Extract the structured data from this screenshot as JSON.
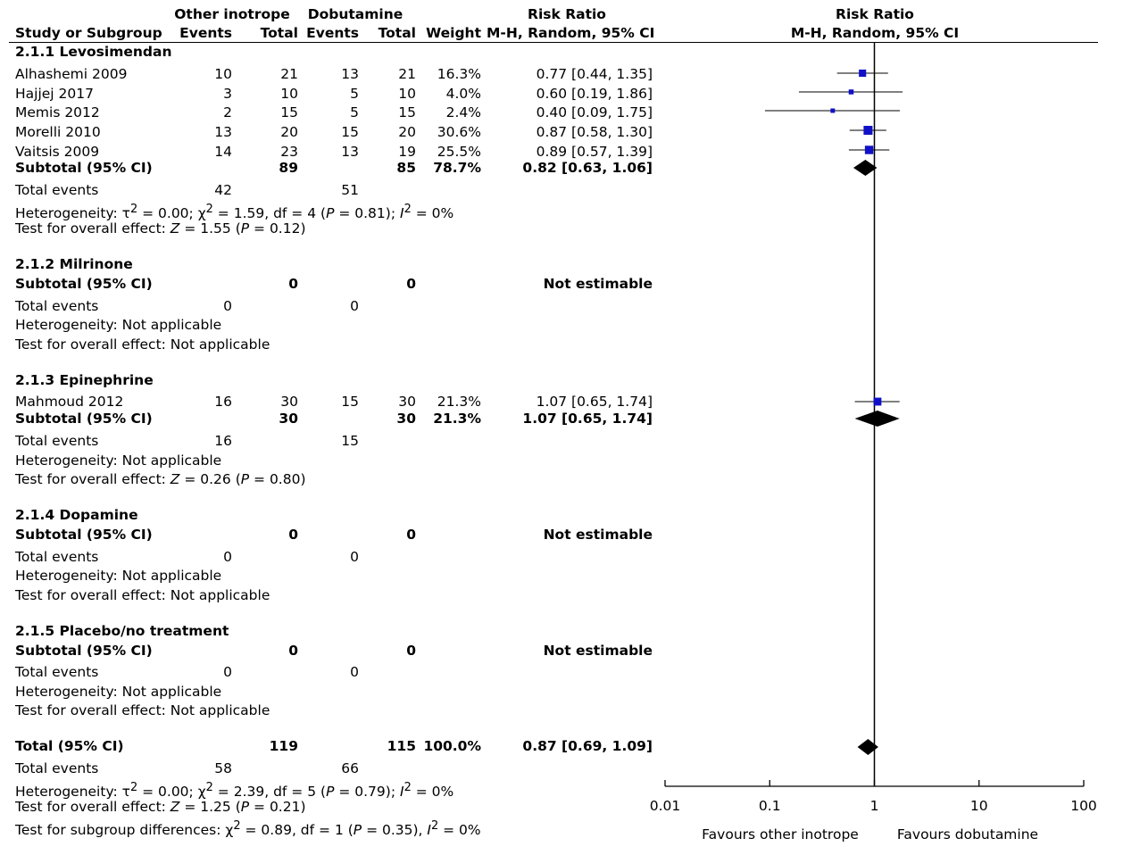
{
  "header": {
    "group1": "Other inotrope",
    "group2": "Dobutamine",
    "rr_col": "Risk Ratio",
    "rr_sub": "M-H, Random, 95% CI",
    "plot_title": "Risk Ratio",
    "plot_sub": "M-H, Random, 95% CI",
    "study": "Study or Subgroup",
    "events": "Events",
    "total": "Total",
    "weight": "Weight"
  },
  "rows": {
    "g1": {
      "title": "2.1.1 Levosimendan"
    },
    "s1": {
      "name": "Alhashemi 2009",
      "e1": "10",
      "t1": "21",
      "e2": "13",
      "t2": "21",
      "w": "16.3%",
      "rr": "0.77 [0.44, 1.35]"
    },
    "s2": {
      "name": "Hajjej 2017",
      "e1": "3",
      "t1": "10",
      "e2": "5",
      "t2": "10",
      "w": "4.0%",
      "rr": "0.60 [0.19, 1.86]"
    },
    "s3": {
      "name": "Memis 2012",
      "e1": "2",
      "t1": "15",
      "e2": "5",
      "t2": "15",
      "w": "2.4%",
      "rr": "0.40 [0.09, 1.75]"
    },
    "s4": {
      "name": "Morelli 2010",
      "e1": "13",
      "t1": "20",
      "e2": "15",
      "t2": "20",
      "w": "30.6%",
      "rr": "0.87 [0.58, 1.30]"
    },
    "s5": {
      "name": "Vaitsis 2009",
      "e1": "14",
      "t1": "23",
      "e2": "13",
      "t2": "19",
      "w": "25.5%",
      "rr": "0.89 [0.57, 1.39]"
    },
    "sub1": {
      "name": "Subtotal (95% CI)",
      "t1": "89",
      "t2": "85",
      "w": "78.7%",
      "rr": "0.82 [0.63, 1.06]"
    },
    "te1": {
      "name": "Total events",
      "e1": "42",
      "e2": "51"
    },
    "het1": {
      "pre": "Heterogeneity: τ",
      "s1": "2",
      "mid": " = 0.00;  χ",
      "s2": "2",
      "mid2": " = 1.59, df = 4 (",
      "p": "P",
      "mid3": " = 0.81); ",
      "i": "I",
      "s3": "2",
      "end": " = 0%"
    },
    "oe1": {
      "pre": "Test for overall effect: ",
      "z": "Z",
      "mid": " = 1.55 (",
      "p": "P",
      "end": " = 0.12)"
    },
    "g2": {
      "title": "2.1.2 Milrinone"
    },
    "sub2": {
      "name": "Subtotal (95% CI)",
      "t1": "0",
      "t2": "0",
      "rr": "Not estimable"
    },
    "te2": {
      "name": "Total events",
      "e1": "0",
      "e2": "0"
    },
    "het2": "Heterogeneity: Not applicable",
    "oe2": "Test for overall effect: Not applicable",
    "g3": {
      "title": "2.1.3 Epinephrine"
    },
    "s6": {
      "name": "Mahmoud 2012",
      "e1": "16",
      "t1": "30",
      "e2": "15",
      "t2": "30",
      "w": "21.3%",
      "rr": "1.07 [0.65, 1.74]"
    },
    "sub3": {
      "name": "Subtotal (95% CI)",
      "t1": "30",
      "t2": "30",
      "w": "21.3%",
      "rr": "1.07 [0.65, 1.74]"
    },
    "te3": {
      "name": "Total events",
      "e1": "16",
      "e2": "15"
    },
    "het3": "Heterogeneity: Not applicable",
    "oe3": {
      "pre": "Test for overall effect: ",
      "z": "Z",
      "mid": " = 0.26 (",
      "p": "P",
      "end": " = 0.80)"
    },
    "g4": {
      "title": "2.1.4 Dopamine"
    },
    "sub4": {
      "name": "Subtotal (95% CI)",
      "t1": "0",
      "t2": "0",
      "rr": "Not estimable"
    },
    "te4": {
      "name": "Total events",
      "e1": "0",
      "e2": "0"
    },
    "het4": "Heterogeneity: Not applicable",
    "oe4": "Test for overall effect: Not applicable",
    "g5": {
      "title": "2.1.5 Placebo/no treatment"
    },
    "sub5": {
      "name": "Subtotal (95% CI)",
      "t1": "0",
      "t2": "0",
      "rr": "Not estimable"
    },
    "te5": {
      "name": "Total events",
      "e1": "0",
      "e2": "0"
    },
    "het5": "Heterogeneity: Not applicable",
    "oe5": "Test for overall effect: Not applicable",
    "tot": {
      "name": "Total (95% CI)",
      "t1": "119",
      "t2": "115",
      "w": "100.0%",
      "rr": "0.87 [0.69, 1.09]"
    },
    "te6": {
      "name": "Total events",
      "e1": "58",
      "e2": "66"
    },
    "het6": {
      "pre": "Heterogeneity: τ",
      "s1": "2",
      "mid": " = 0.00;  χ",
      "s2": "2",
      "mid2": " = 2.39, df = 5 (",
      "p": "P",
      "mid3": " = 0.79); ",
      "i": "I",
      "s3": "2",
      "end": " = 0%"
    },
    "oe6": {
      "pre": "Test for overall effect: ",
      "z": "Z",
      "mid": " = 1.25 (",
      "p": "P",
      "end": " = 0.21)"
    },
    "sgd": {
      "pre": "Test for subgroup differences: χ",
      "s1": "2",
      "mid": " = 0.89, df = 1 (",
      "p": "P",
      "mid2": " = 0.35), ",
      "i": "I",
      "s2": "2",
      "end": " = 0%"
    }
  },
  "chart_data": {
    "type": "forest",
    "scale": "log",
    "xlim": [
      0.01,
      100
    ],
    "ticks": [
      0.01,
      0.1,
      1,
      10,
      100
    ],
    "tick_labels": [
      "0.01",
      "0.1",
      "1",
      "10",
      "100"
    ],
    "favours_left": "Favours other inotrope",
    "favours_right": "Favours dobutamine",
    "colors": {
      "marker": "#1010c8",
      "diamond": "#000000"
    },
    "studies": [
      {
        "name": "Alhashemi 2009",
        "rr": 0.77,
        "lo": 0.44,
        "hi": 1.35,
        "weight": 16.3
      },
      {
        "name": "Hajjej 2017",
        "rr": 0.6,
        "lo": 0.19,
        "hi": 1.86,
        "weight": 4.0
      },
      {
        "name": "Memis 2012",
        "rr": 0.4,
        "lo": 0.09,
        "hi": 1.75,
        "weight": 2.4
      },
      {
        "name": "Morelli 2010",
        "rr": 0.87,
        "lo": 0.58,
        "hi": 1.3,
        "weight": 30.6
      },
      {
        "name": "Vaitsis 2009",
        "rr": 0.89,
        "lo": 0.57,
        "hi": 1.39,
        "weight": 25.5
      },
      {
        "name": "Mahmoud 2012",
        "rr": 1.07,
        "lo": 0.65,
        "hi": 1.74,
        "weight": 21.3
      }
    ],
    "diamonds": [
      {
        "name": "Subtotal Levosimendan",
        "rr": 0.82,
        "lo": 0.63,
        "hi": 1.06
      },
      {
        "name": "Subtotal Epinephrine",
        "rr": 1.07,
        "lo": 0.65,
        "hi": 1.74
      },
      {
        "name": "Total",
        "rr": 0.87,
        "lo": 0.69,
        "hi": 1.09
      }
    ]
  }
}
